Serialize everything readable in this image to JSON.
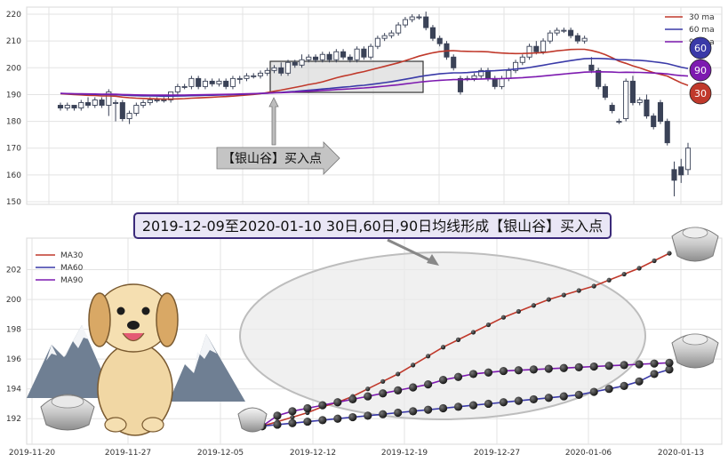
{
  "top_chart": {
    "y_ticks": [
      "220",
      "210",
      "200",
      "190",
      "180",
      "170",
      "160",
      "150"
    ],
    "legend": [
      {
        "label": "30 ma",
        "color": "#c0392b"
      },
      {
        "label": "60 ma",
        "color": "#3a3aa8"
      },
      {
        "label": "90 ma",
        "color": "#7d1ab0"
      }
    ],
    "badges": [
      {
        "label": "60",
        "color": "#3a3aa8"
      },
      {
        "label": "90",
        "color": "#7d1ab0"
      },
      {
        "label": "30",
        "color": "#c0392b"
      }
    ],
    "callout_text": "【银山谷】买入点"
  },
  "banner_text": "2019-12-09至2020-01-10 30日,60日,90日均线形成【银山谷】买入点",
  "chart_data": [
    {
      "type": "candlestick",
      "title": "",
      "ylim": [
        150,
        222
      ],
      "yticks": [
        150,
        160,
        170,
        180,
        190,
        200,
        210,
        220
      ],
      "candles": [
        [
          186,
          185,
          187,
          184
        ],
        [
          185,
          186,
          187,
          184
        ],
        [
          186,
          185,
          186,
          184
        ],
        [
          185,
          187,
          188,
          184
        ],
        [
          187,
          186,
          189,
          185
        ],
        [
          186,
          188,
          189,
          185
        ],
        [
          188,
          186,
          189,
          185
        ],
        [
          186,
          191,
          192,
          182
        ],
        [
          187,
          187,
          188,
          180
        ],
        [
          187,
          181,
          188,
          180
        ],
        [
          181,
          183,
          184,
          179
        ],
        [
          183,
          186,
          187,
          182
        ],
        [
          186,
          187,
          188,
          185
        ],
        [
          187,
          188,
          189,
          186
        ],
        [
          188,
          188,
          189,
          187
        ],
        [
          188,
          188,
          189,
          187
        ],
        [
          188,
          191,
          191,
          187
        ],
        [
          191,
          193,
          194,
          190
        ],
        [
          193,
          193,
          194,
          192
        ],
        [
          193,
          196,
          197,
          192
        ],
        [
          196,
          193,
          197,
          192
        ],
        [
          193,
          195,
          196,
          192
        ],
        [
          195,
          194,
          196,
          193
        ],
        [
          194,
          195,
          196,
          193
        ],
        [
          195,
          193,
          196,
          192
        ],
        [
          193,
          196,
          197,
          192
        ],
        [
          196,
          196,
          197,
          194
        ],
        [
          196,
          197,
          198,
          195
        ],
        [
          197,
          197,
          198,
          196
        ],
        [
          197,
          198,
          199,
          196
        ],
        [
          198,
          199,
          200,
          197
        ],
        [
          199,
          200,
          201,
          198
        ],
        [
          200,
          198,
          202,
          197
        ],
        [
          198,
          202,
          203,
          197
        ],
        [
          202,
          201,
          203,
          200
        ],
        [
          201,
          203,
          205,
          200
        ],
        [
          203,
          204,
          205,
          202
        ],
        [
          204,
          203,
          205,
          202
        ],
        [
          203,
          205,
          206,
          202
        ],
        [
          205,
          203,
          206,
          202
        ],
        [
          203,
          206,
          207,
          202
        ],
        [
          206,
          204,
          207,
          203
        ],
        [
          204,
          203,
          205,
          202
        ],
        [
          203,
          207,
          208,
          202
        ],
        [
          207,
          204,
          208,
          203
        ],
        [
          204,
          208,
          209,
          203
        ],
        [
          208,
          211,
          212,
          207
        ],
        [
          211,
          212,
          213,
          210
        ],
        [
          212,
          213,
          214,
          211
        ],
        [
          213,
          216,
          217,
          212
        ],
        [
          216,
          218,
          219,
          215
        ],
        [
          218,
          219,
          220,
          217
        ],
        [
          219,
          219,
          220,
          218
        ],
        [
          219,
          215,
          221,
          214
        ],
        [
          215,
          211,
          216,
          210
        ],
        [
          211,
          209,
          212,
          208
        ],
        [
          209,
          204,
          210,
          203
        ],
        [
          204,
          200,
          205,
          199
        ],
        [
          196,
          191,
          197,
          190
        ],
        [
          196,
          196,
          197,
          195
        ],
        [
          196,
          197,
          198,
          195
        ],
        [
          197,
          199,
          200,
          196
        ],
        [
          199,
          196,
          200,
          195
        ],
        [
          196,
          193,
          197,
          192
        ],
        [
          193,
          196,
          197,
          192
        ],
        [
          196,
          199,
          200,
          195
        ],
        [
          199,
          202,
          203,
          198
        ],
        [
          202,
          204,
          205,
          201
        ],
        [
          204,
          208,
          209,
          203
        ],
        [
          208,
          206,
          210,
          205
        ],
        [
          206,
          210,
          211,
          205
        ],
        [
          210,
          213,
          214,
          209
        ],
        [
          213,
          214,
          215,
          212
        ],
        [
          214,
          214,
          215,
          213
        ],
        [
          214,
          212,
          215,
          211
        ],
        [
          212,
          210,
          213,
          209
        ],
        [
          210,
          211,
          212,
          209
        ],
        [
          201,
          199,
          204,
          198
        ],
        [
          199,
          193,
          200,
          192
        ],
        [
          193,
          189,
          194,
          188
        ],
        [
          186,
          184,
          187,
          183
        ],
        [
          180,
          180,
          181,
          179
        ],
        [
          181,
          195,
          196,
          180
        ],
        [
          195,
          187,
          197,
          186
        ],
        [
          187,
          188,
          189,
          186
        ],
        [
          188,
          182,
          190,
          181
        ],
        [
          182,
          178,
          183,
          177
        ],
        [
          187,
          180,
          188,
          179
        ],
        [
          180,
          172,
          181,
          171
        ],
        [
          162,
          158,
          165,
          152
        ],
        [
          163,
          160,
          166,
          157
        ],
        [
          162,
          170,
          172,
          160
        ]
      ]
    },
    {
      "type": "line",
      "title": "",
      "x_ticks": [
        "2019-11-20",
        "2019-11-27",
        "2019-12-05",
        "2019-12-12",
        "2019-12-19",
        "2019-12-27",
        "2020-01-06",
        "2020-01-13"
      ],
      "ylim": [
        191,
        204
      ],
      "yticks": [
        192,
        194,
        196,
        198,
        200,
        202
      ],
      "series": [
        {
          "name": "MA30",
          "color": "#c0392b",
          "values": [
            191.5,
            191.8,
            192.1,
            192.4,
            192.8,
            193.1,
            193.5,
            194.0,
            194.5,
            195.0,
            195.6,
            196.2,
            196.8,
            197.3,
            197.8,
            198.3,
            198.8,
            199.2,
            199.6,
            200.0,
            200.3,
            200.6,
            200.9,
            201.3,
            201.7,
            202.1,
            202.6,
            203.1
          ]
        },
        {
          "name": "MA60",
          "color": "#3a3aa8",
          "values": [
            191.5,
            191.6,
            191.7,
            191.8,
            191.9,
            192.0,
            192.1,
            192.2,
            192.3,
            192.4,
            192.5,
            192.6,
            192.7,
            192.8,
            192.9,
            193.0,
            193.1,
            193.2,
            193.3,
            193.4,
            193.5,
            193.6,
            193.8,
            194.0,
            194.2,
            194.5,
            195.0,
            195.3
          ]
        },
        {
          "name": "MA90",
          "color": "#7d1ab0",
          "values": [
            191.5,
            192.2,
            192.5,
            192.7,
            192.9,
            193.1,
            193.3,
            193.5,
            193.7,
            193.9,
            194.1,
            194.3,
            194.6,
            194.8,
            195.0,
            195.1,
            195.2,
            195.25,
            195.3,
            195.35,
            195.4,
            195.45,
            195.5,
            195.55,
            195.6,
            195.65,
            195.7,
            195.75
          ]
        }
      ]
    }
  ]
}
